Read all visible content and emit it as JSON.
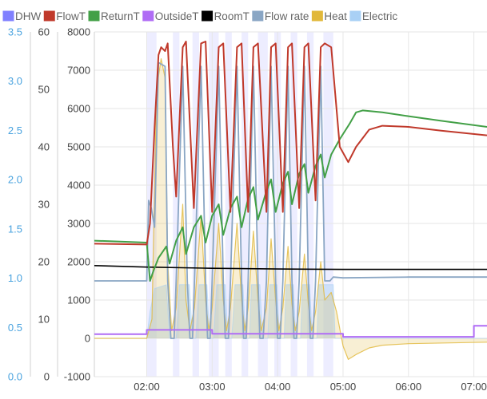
{
  "chart_data": {
    "type": "line",
    "legend_position": "top",
    "grid": true,
    "legend": [
      {
        "name": "DHW",
        "color": "#8080ff"
      },
      {
        "name": "FlowT",
        "color": "#c0392b"
      },
      {
        "name": "ReturnT",
        "color": "#43a047"
      },
      {
        "name": "OutsideT",
        "color": "#b06cf5"
      },
      {
        "name": "RoomT",
        "color": "#000000"
      },
      {
        "name": "Flow rate",
        "color": "#8aa6c4"
      },
      {
        "name": "Heat",
        "color": "#e1b83a"
      },
      {
        "name": "Electric",
        "color": "#a9d0f5"
      }
    ],
    "axes": {
      "flow_rate": {
        "ticks": [
          "0.0",
          "0.5",
          "1.0",
          "1.5",
          "2.0",
          "2.5",
          "3.0",
          "3.5"
        ],
        "range": [
          0,
          3.5
        ],
        "color": "#4aa3df"
      },
      "temperature": {
        "ticks": [
          "0",
          "10",
          "20",
          "30",
          "40",
          "50",
          "60"
        ],
        "range": [
          0,
          60
        ],
        "color": "#444444"
      },
      "power": {
        "ticks": [
          "-1000",
          "0",
          "1000",
          "2000",
          "3000",
          "4000",
          "5000",
          "6000",
          "7000",
          "8000"
        ],
        "range": [
          -1000,
          8000
        ],
        "color": "#444444"
      },
      "time": {
        "ticks": [
          "02:00",
          "03:00",
          "04:00",
          "05:00",
          "06:00",
          "07:00"
        ],
        "range": [
          1.2,
          7.2
        ]
      }
    },
    "dhw_bands": [
      [
        2.0,
        2.15
      ],
      [
        2.4,
        2.5
      ],
      [
        2.7,
        2.8
      ],
      [
        2.95,
        3.1
      ],
      [
        3.2,
        3.3
      ],
      [
        3.45,
        3.55
      ],
      [
        3.7,
        3.85
      ],
      [
        3.95,
        4.05
      ],
      [
        4.2,
        4.3
      ],
      [
        4.45,
        4.55
      ],
      [
        4.7,
        4.85
      ]
    ],
    "series": [
      {
        "name": "FlowT",
        "axis": "power",
        "color": "#c0392b",
        "points": [
          [
            1.2,
            2470
          ],
          [
            2.0,
            2450
          ],
          [
            2.05,
            3000
          ],
          [
            2.12,
            5500
          ],
          [
            2.18,
            7400
          ],
          [
            2.22,
            7600
          ],
          [
            2.28,
            7500
          ],
          [
            2.32,
            7700
          ],
          [
            2.4,
            5000
          ],
          [
            2.45,
            3700
          ],
          [
            2.55,
            7600
          ],
          [
            2.6,
            7750
          ],
          [
            2.72,
            3400
          ],
          [
            2.83,
            7700
          ],
          [
            2.9,
            7750
          ],
          [
            3.0,
            3300
          ],
          [
            3.1,
            7600
          ],
          [
            3.17,
            7700
          ],
          [
            3.28,
            3300
          ],
          [
            3.38,
            7600
          ],
          [
            3.45,
            7700
          ],
          [
            3.55,
            3300
          ],
          [
            3.63,
            7600
          ],
          [
            3.7,
            7700
          ],
          [
            3.83,
            3300
          ],
          [
            3.9,
            7600
          ],
          [
            3.97,
            7700
          ],
          [
            4.08,
            3300
          ],
          [
            4.16,
            7600
          ],
          [
            4.22,
            7700
          ],
          [
            4.33,
            3400
          ],
          [
            4.41,
            7600
          ],
          [
            4.47,
            7700
          ],
          [
            4.58,
            3600
          ],
          [
            4.66,
            7600
          ],
          [
            4.72,
            7700
          ],
          [
            4.82,
            7600
          ],
          [
            4.95,
            5000
          ],
          [
            5.08,
            4600
          ],
          [
            5.2,
            5000
          ],
          [
            5.4,
            5450
          ],
          [
            5.6,
            5550
          ],
          [
            6.0,
            5520
          ],
          [
            6.5,
            5420
          ],
          [
            7.2,
            5300
          ]
        ]
      },
      {
        "name": "ReturnT",
        "axis": "power",
        "color": "#43a047",
        "points": [
          [
            1.2,
            2550
          ],
          [
            2.0,
            2500
          ],
          [
            2.05,
            1500
          ],
          [
            2.1,
            1750
          ],
          [
            2.18,
            2100
          ],
          [
            2.3,
            2400
          ],
          [
            2.35,
            1950
          ],
          [
            2.45,
            2550
          ],
          [
            2.55,
            2900
          ],
          [
            2.6,
            2200
          ],
          [
            2.72,
            2900
          ],
          [
            2.83,
            3200
          ],
          [
            2.9,
            2500
          ],
          [
            3.0,
            3200
          ],
          [
            3.1,
            3500
          ],
          [
            3.17,
            2700
          ],
          [
            3.28,
            3400
          ],
          [
            3.38,
            3700
          ],
          [
            3.45,
            2900
          ],
          [
            3.55,
            3650
          ],
          [
            3.63,
            3950
          ],
          [
            3.7,
            3100
          ],
          [
            3.83,
            3850
          ],
          [
            3.9,
            4150
          ],
          [
            3.97,
            3300
          ],
          [
            4.08,
            4050
          ],
          [
            4.16,
            4350
          ],
          [
            4.22,
            3500
          ],
          [
            4.33,
            4300
          ],
          [
            4.41,
            4550
          ],
          [
            4.47,
            3800
          ],
          [
            4.58,
            4500
          ],
          [
            4.66,
            4800
          ],
          [
            4.72,
            4200
          ],
          [
            4.82,
            4800
          ],
          [
            4.95,
            5200
          ],
          [
            5.1,
            5600
          ],
          [
            5.2,
            5900
          ],
          [
            5.3,
            5950
          ],
          [
            5.6,
            5900
          ],
          [
            6.0,
            5800
          ],
          [
            6.5,
            5680
          ],
          [
            7.2,
            5520
          ]
        ]
      },
      {
        "name": "RoomT",
        "axis": "power",
        "color": "#000000",
        "points": [
          [
            1.2,
            1900
          ],
          [
            2.0,
            1860
          ],
          [
            3.0,
            1830
          ],
          [
            4.0,
            1810
          ],
          [
            5.0,
            1800
          ],
          [
            6.0,
            1800
          ],
          [
            7.2,
            1800
          ]
        ]
      },
      {
        "name": "OutsideT",
        "axis": "power",
        "color": "#b06cf5",
        "points": [
          [
            1.2,
            110
          ],
          [
            2.0,
            110
          ],
          [
            2.0,
            220
          ],
          [
            3.0,
            220
          ],
          [
            3.0,
            120
          ],
          [
            5.0,
            120
          ],
          [
            5.0,
            40
          ],
          [
            7.0,
            40
          ],
          [
            7.0,
            330
          ],
          [
            7.2,
            330
          ]
        ]
      },
      {
        "name": "Flow rate",
        "axis": "power",
        "color": "#8aa6c4",
        "points": [
          [
            1.2,
            1500
          ],
          [
            2.0,
            1500
          ],
          [
            2.03,
            3600
          ],
          [
            2.07,
            3400
          ],
          [
            2.12,
            2900
          ],
          [
            2.18,
            7200
          ],
          [
            2.28,
            7100
          ],
          [
            2.32,
            1500
          ],
          [
            2.37,
            0
          ],
          [
            2.42,
            0
          ],
          [
            2.45,
            1500
          ],
          [
            2.55,
            7100
          ],
          [
            2.62,
            1500
          ],
          [
            2.66,
            0
          ],
          [
            2.7,
            0
          ],
          [
            2.73,
            1500
          ],
          [
            2.83,
            7100
          ],
          [
            2.9,
            1500
          ],
          [
            2.93,
            0
          ],
          [
            2.97,
            0
          ],
          [
            3.0,
            1500
          ],
          [
            3.1,
            7100
          ],
          [
            3.17,
            1500
          ],
          [
            3.2,
            0
          ],
          [
            3.25,
            0
          ],
          [
            3.28,
            1500
          ],
          [
            3.38,
            7100
          ],
          [
            3.45,
            1500
          ],
          [
            3.48,
            0
          ],
          [
            3.52,
            0
          ],
          [
            3.55,
            1500
          ],
          [
            3.63,
            7100
          ],
          [
            3.7,
            1500
          ],
          [
            3.73,
            0
          ],
          [
            3.78,
            0
          ],
          [
            3.83,
            1500
          ],
          [
            3.9,
            7100
          ],
          [
            3.97,
            1500
          ],
          [
            4.0,
            0
          ],
          [
            4.04,
            0
          ],
          [
            4.08,
            1500
          ],
          [
            4.16,
            7100
          ],
          [
            4.22,
            1500
          ],
          [
            4.25,
            0
          ],
          [
            4.29,
            0
          ],
          [
            4.33,
            1500
          ],
          [
            4.41,
            7100
          ],
          [
            4.47,
            1500
          ],
          [
            4.5,
            0
          ],
          [
            4.54,
            0
          ],
          [
            4.58,
            1500
          ],
          [
            4.66,
            7100
          ],
          [
            4.72,
            1500
          ],
          [
            4.8,
            1500
          ],
          [
            4.85,
            1600
          ],
          [
            5.0,
            1580
          ],
          [
            6.0,
            1600
          ],
          [
            7.2,
            1600
          ]
        ]
      },
      {
        "name": "Heat",
        "axis": "power",
        "color": "#e1b83a",
        "fill": true,
        "points": [
          [
            1.2,
            0
          ],
          [
            2.0,
            0
          ],
          [
            2.08,
            500
          ],
          [
            2.15,
            6500
          ],
          [
            2.22,
            7300
          ],
          [
            2.28,
            6800
          ],
          [
            2.32,
            2000
          ],
          [
            2.38,
            200
          ],
          [
            2.45,
            800
          ],
          [
            2.55,
            3500
          ],
          [
            2.6,
            1000
          ],
          [
            2.66,
            200
          ],
          [
            2.73,
            800
          ],
          [
            2.83,
            3200
          ],
          [
            2.9,
            1000
          ],
          [
            2.95,
            200
          ],
          [
            3.0,
            800
          ],
          [
            3.1,
            3000
          ],
          [
            3.17,
            1000
          ],
          [
            3.22,
            200
          ],
          [
            3.28,
            800
          ],
          [
            3.38,
            3000
          ],
          [
            3.45,
            1000
          ],
          [
            3.5,
            200
          ],
          [
            3.55,
            800
          ],
          [
            3.63,
            2800
          ],
          [
            3.7,
            1000
          ],
          [
            3.75,
            200
          ],
          [
            3.83,
            800
          ],
          [
            3.9,
            2600
          ],
          [
            3.97,
            1000
          ],
          [
            4.02,
            200
          ],
          [
            4.08,
            800
          ],
          [
            4.16,
            2400
          ],
          [
            4.22,
            900
          ],
          [
            4.27,
            200
          ],
          [
            4.33,
            700
          ],
          [
            4.41,
            2200
          ],
          [
            4.47,
            900
          ],
          [
            4.52,
            200
          ],
          [
            4.58,
            700
          ],
          [
            4.66,
            2000
          ],
          [
            4.72,
            1000
          ],
          [
            4.82,
            1200
          ],
          [
            4.9,
            700
          ],
          [
            5.0,
            -200
          ],
          [
            5.08,
            -550
          ],
          [
            5.2,
            -420
          ],
          [
            5.4,
            -250
          ],
          [
            5.6,
            -180
          ],
          [
            6.0,
            -140
          ],
          [
            7.2,
            -100
          ]
        ]
      },
      {
        "name": "Electric",
        "axis": "power",
        "color": "#a9d0f5",
        "fill": true,
        "points": [
          [
            1.2,
            0
          ],
          [
            2.0,
            0
          ],
          [
            2.05,
            700
          ],
          [
            2.12,
            1300
          ],
          [
            2.3,
            1400
          ],
          [
            2.35,
            0
          ],
          [
            2.45,
            0
          ],
          [
            2.5,
            1400
          ],
          [
            2.65,
            1400
          ],
          [
            2.7,
            0
          ],
          [
            2.75,
            0
          ],
          [
            2.8,
            1400
          ],
          [
            2.92,
            1400
          ],
          [
            2.96,
            0
          ],
          [
            3.02,
            0
          ],
          [
            3.07,
            1400
          ],
          [
            3.2,
            1400
          ],
          [
            3.24,
            0
          ],
          [
            3.3,
            0
          ],
          [
            3.35,
            1400
          ],
          [
            3.47,
            1400
          ],
          [
            3.51,
            0
          ],
          [
            3.57,
            0
          ],
          [
            3.6,
            1400
          ],
          [
            3.73,
            1400
          ],
          [
            3.77,
            0
          ],
          [
            3.85,
            0
          ],
          [
            3.88,
            1400
          ],
          [
            3.99,
            1400
          ],
          [
            4.03,
            0
          ],
          [
            4.1,
            0
          ],
          [
            4.13,
            1400
          ],
          [
            4.24,
            1400
          ],
          [
            4.28,
            0
          ],
          [
            4.35,
            0
          ],
          [
            4.38,
            1400
          ],
          [
            4.49,
            1400
          ],
          [
            4.53,
            0
          ],
          [
            4.6,
            0
          ],
          [
            4.63,
            1400
          ],
          [
            4.85,
            1400
          ],
          [
            4.88,
            0
          ],
          [
            7.2,
            0
          ]
        ]
      }
    ]
  }
}
